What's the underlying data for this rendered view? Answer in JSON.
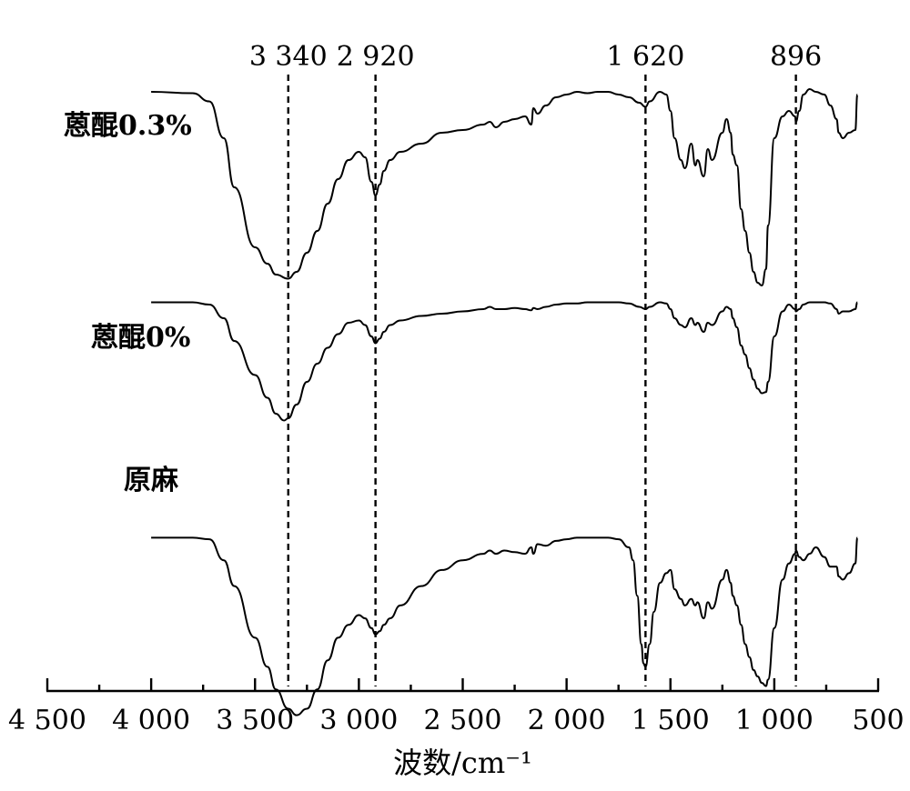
{
  "chart_data": {
    "type": "line",
    "xlabel": "波数/cm⁻¹",
    "ylabel": "",
    "xlim": [
      4500,
      500
    ],
    "x_reversed": true,
    "y_axis_visible": false,
    "grid": false,
    "legend": "none (series labeled inline on left)",
    "x_ticks": [
      "4 500",
      "4 000",
      "3 500",
      "3 000",
      "2 500",
      "2 000",
      "1 500",
      "1 000",
      "500"
    ],
    "x_tick_values": [
      4500,
      4000,
      3500,
      3000,
      2500,
      2000,
      1500,
      1000,
      500
    ],
    "peak_markers": [
      {
        "label": "3 340",
        "x": 3340
      },
      {
        "label": "2 920",
        "x": 2920
      },
      {
        "label": "1 620",
        "x": 1620
      },
      {
        "label": "896",
        "x": 896
      }
    ],
    "series": [
      {
        "name": "蒽醌0.3%",
        "x": [
          4000,
          3800,
          3720,
          3650,
          3600,
          3500,
          3440,
          3400,
          3340,
          3300,
          3250,
          3200,
          3150,
          3100,
          3050,
          3000,
          2970,
          2940,
          2920,
          2900,
          2880,
          2850,
          2800,
          2700,
          2600,
          2500,
          2400,
          2370,
          2340,
          2300,
          2250,
          2200,
          2170,
          2160,
          2140,
          2100,
          2050,
          2000,
          1950,
          1900,
          1850,
          1800,
          1750,
          1700,
          1650,
          1620,
          1600,
          1550,
          1520,
          1500,
          1480,
          1450,
          1430,
          1400,
          1380,
          1370,
          1340,
          1320,
          1300,
          1250,
          1230,
          1210,
          1200,
          1180,
          1160,
          1140,
          1120,
          1100,
          1080,
          1060,
          1040,
          1030,
          1000,
          960,
          930,
          900,
          896,
          880,
          860,
          830,
          800,
          760,
          730,
          700,
          690,
          670,
          640,
          610,
          600
        ],
        "y": [
          97,
          96.5,
          93.5,
          80,
          62,
          40,
          34,
          30,
          28.5,
          31,
          38,
          46,
          56,
          65,
          72,
          75,
          73,
          64,
          59,
          63,
          68,
          72,
          75,
          78,
          82,
          83,
          85,
          86,
          84,
          86,
          87,
          88,
          85,
          91,
          89,
          92,
          95,
          96,
          97,
          96.5,
          97,
          97,
          96,
          95,
          93,
          91.5,
          93.5,
          97,
          96,
          90,
          80,
          72,
          69,
          78,
          70,
          72,
          66,
          76,
          72,
          82,
          87,
          82,
          74,
          70,
          54,
          46,
          38,
          31,
          27,
          26,
          32,
          48,
          80,
          88,
          90,
          88,
          86,
          90,
          96,
          98,
          97,
          96,
          92,
          87,
          82,
          80,
          82,
          83,
          96
        ]
      },
      {
        "name": "蒽醌0%",
        "x": [
          4000,
          3800,
          3720,
          3650,
          3600,
          3500,
          3440,
          3400,
          3360,
          3340,
          3300,
          3250,
          3200,
          3150,
          3100,
          3050,
          3000,
          2970,
          2940,
          2920,
          2900,
          2880,
          2850,
          2800,
          2700,
          2600,
          2500,
          2400,
          2370,
          2340,
          2300,
          2250,
          2200,
          2170,
          2160,
          2140,
          2100,
          2050,
          2000,
          1950,
          1900,
          1850,
          1800,
          1750,
          1700,
          1650,
          1620,
          1600,
          1550,
          1520,
          1500,
          1480,
          1450,
          1430,
          1400,
          1380,
          1370,
          1340,
          1320,
          1300,
          1250,
          1230,
          1210,
          1200,
          1180,
          1160,
          1140,
          1120,
          1100,
          1080,
          1060,
          1040,
          1030,
          1000,
          960,
          930,
          900,
          896,
          880,
          860,
          830,
          800,
          760,
          730,
          700,
          690,
          670,
          640,
          610,
          600
        ],
        "y": [
          67,
          67,
          66,
          60,
          50,
          35,
          25,
          18,
          15,
          16,
          22,
          32,
          40,
          47,
          53,
          58,
          59,
          57,
          52,
          49,
          51,
          54,
          57,
          59,
          61,
          62,
          63,
          64,
          65,
          64,
          64,
          64.5,
          64,
          63.5,
          64.5,
          64,
          65,
          66,
          66.5,
          66.5,
          67,
          67,
          67,
          67,
          66.5,
          65,
          64,
          65,
          67,
          66.5,
          64,
          60,
          57,
          56,
          60,
          57,
          58,
          54,
          58,
          57,
          63,
          65,
          64,
          60,
          56,
          48,
          44,
          38,
          33,
          29,
          27,
          27.5,
          32,
          52,
          63,
          66,
          64,
          63,
          64,
          66,
          67,
          67,
          67,
          66.5,
          64,
          62,
          63,
          63,
          64,
          67
        ]
      },
      {
        "name": "原麻",
        "x": [
          4000,
          3800,
          3720,
          3650,
          3600,
          3500,
          3440,
          3400,
          3340,
          3300,
          3250,
          3200,
          3150,
          3100,
          3050,
          3000,
          2970,
          2940,
          2920,
          2900,
          2880,
          2850,
          2800,
          2700,
          2600,
          2500,
          2400,
          2370,
          2340,
          2300,
          2250,
          2200,
          2170,
          2160,
          2140,
          2100,
          2050,
          2000,
          1950,
          1900,
          1850,
          1800,
          1750,
          1700,
          1680,
          1660,
          1640,
          1630,
          1620,
          1600,
          1580,
          1550,
          1520,
          1500,
          1480,
          1450,
          1430,
          1400,
          1380,
          1370,
          1340,
          1320,
          1300,
          1250,
          1230,
          1210,
          1200,
          1180,
          1160,
          1140,
          1120,
          1100,
          1080,
          1060,
          1040,
          1030,
          1000,
          960,
          930,
          900,
          896,
          880,
          860,
          830,
          800,
          760,
          730,
          700,
          690,
          670,
          640,
          610,
          600
        ],
        "y": [
          63,
          63,
          62.5,
          56,
          48,
          32,
          23,
          16,
          10,
          8,
          10,
          16,
          25,
          32,
          36,
          39,
          38,
          35,
          33,
          34,
          36,
          38,
          42,
          48,
          53,
          56,
          58,
          59,
          58,
          59,
          58.5,
          58,
          60,
          58,
          61,
          60.5,
          62,
          62.5,
          63,
          63,
          63,
          63,
          62.5,
          60,
          56,
          45,
          30,
          24,
          23,
          30,
          40,
          49,
          52,
          53,
          47,
          44,
          42,
          44,
          42,
          43,
          38,
          43,
          41,
          50,
          53,
          49,
          45,
          42,
          36,
          30,
          26,
          22,
          20,
          18,
          17,
          19,
          35,
          50,
          55,
          58,
          59,
          57,
          56,
          58,
          60,
          57,
          54,
          54,
          51,
          50,
          52,
          55,
          63
        ]
      }
    ]
  }
}
